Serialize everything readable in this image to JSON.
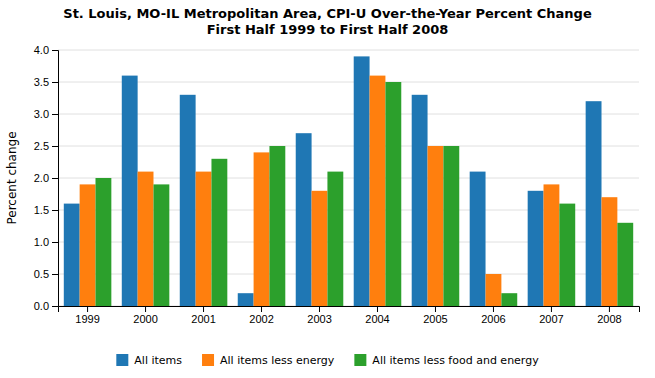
{
  "chart_data": {
    "type": "bar",
    "title": "St. Louis, MO-IL Metropolitan Area, CPI-U Over-the-Year Percent Change\nFirst Half 1999 to First Half 2008",
    "y_label": "Percent change",
    "categories": [
      "1999",
      "2000",
      "2001",
      "2002",
      "2003",
      "2004",
      "2005",
      "2006",
      "2007",
      "2008"
    ],
    "series": [
      {
        "name": "All items",
        "values": [
          1.6,
          3.6,
          3.3,
          0.2,
          2.7,
          3.9,
          3.3,
          2.1,
          1.8,
          3.2
        ]
      },
      {
        "name": "All items less energy",
        "values": [
          1.9,
          2.1,
          2.1,
          2.4,
          1.8,
          3.6,
          2.5,
          0.5,
          1.9,
          1.7
        ]
      },
      {
        "name": "All items less food and energy",
        "values": [
          2.0,
          1.9,
          2.3,
          2.5,
          2.1,
          3.5,
          2.5,
          0.2,
          1.6,
          1.3
        ]
      }
    ],
    "ylim": [
      0.0,
      4.0
    ],
    "yticks": [
      {
        "value": 0,
        "label": "0.0"
      },
      0.5,
      {
        "value": 1,
        "label": "1.0"
      },
      1.5,
      {
        "value": 2,
        "label": "2.0"
      },
      2.5,
      {
        "value": 3,
        "label": "3.0"
      },
      3.5,
      {
        "value": 4,
        "label": "4.0"
      }
    ],
    "grid": true,
    "legend": "bottom"
  }
}
